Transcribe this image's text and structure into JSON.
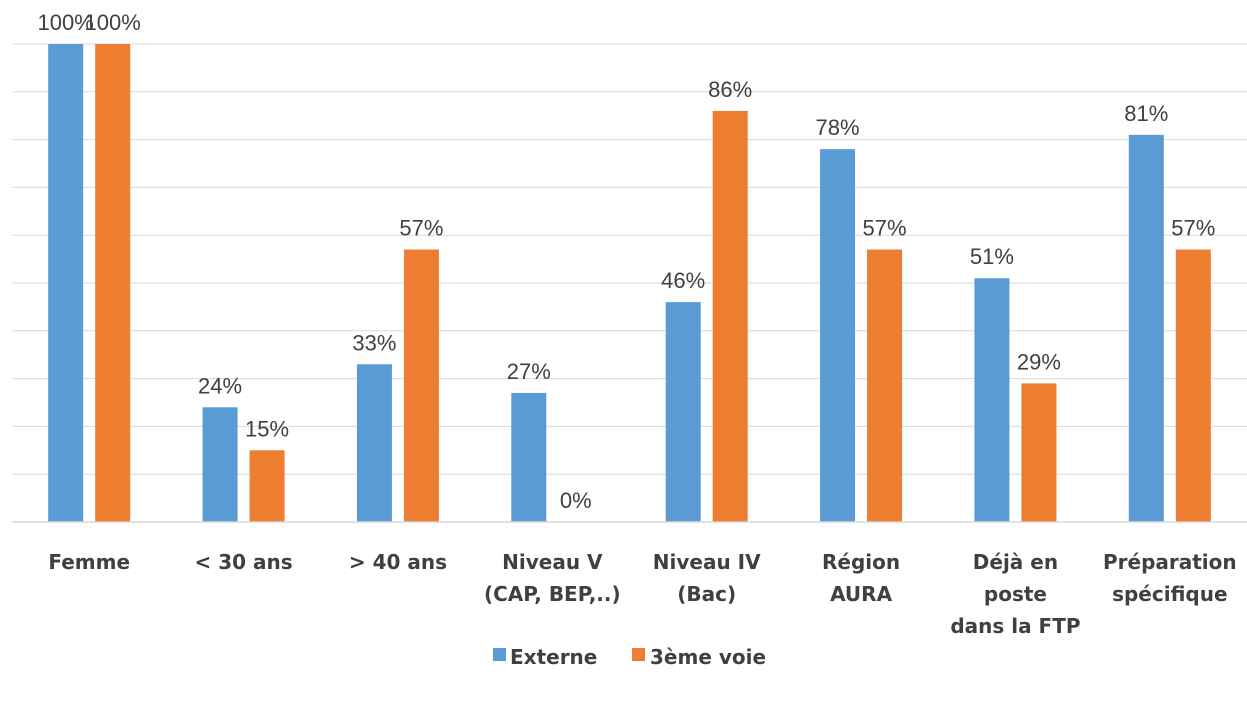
{
  "chart_data": {
    "type": "bar",
    "title": "",
    "xlabel": "",
    "ylabel": "",
    "ylim": [
      0,
      110
    ],
    "grid": true,
    "legend_position": "bottom",
    "categories": [
      [
        "Femme"
      ],
      [
        "< 30 ans"
      ],
      [
        "> 40 ans"
      ],
      [
        "Niveau V",
        "(CAP, BEP,..)"
      ],
      [
        "Niveau IV",
        "(Bac)"
      ],
      [
        "Région",
        "AURA"
      ],
      [
        "Déjà en",
        "poste",
        "dans la FTP"
      ],
      [
        "Préparation",
        "spécifique"
      ]
    ],
    "series": [
      {
        "name": "Externe",
        "color": "#5b9bd5",
        "values": [
          100,
          24,
          33,
          27,
          46,
          78,
          51,
          81
        ],
        "labels": [
          "100%",
          "24%",
          "33%",
          "27%",
          "46%",
          "78%",
          "51%",
          "81%"
        ]
      },
      {
        "name": "3ème voie",
        "color": "#ed7d31",
        "values": [
          100,
          15,
          57,
          0,
          86,
          57,
          29,
          57
        ],
        "labels": [
          "100%",
          "15%",
          "57%",
          "0%",
          "86%",
          "57%",
          "29%",
          "57%"
        ]
      }
    ]
  }
}
